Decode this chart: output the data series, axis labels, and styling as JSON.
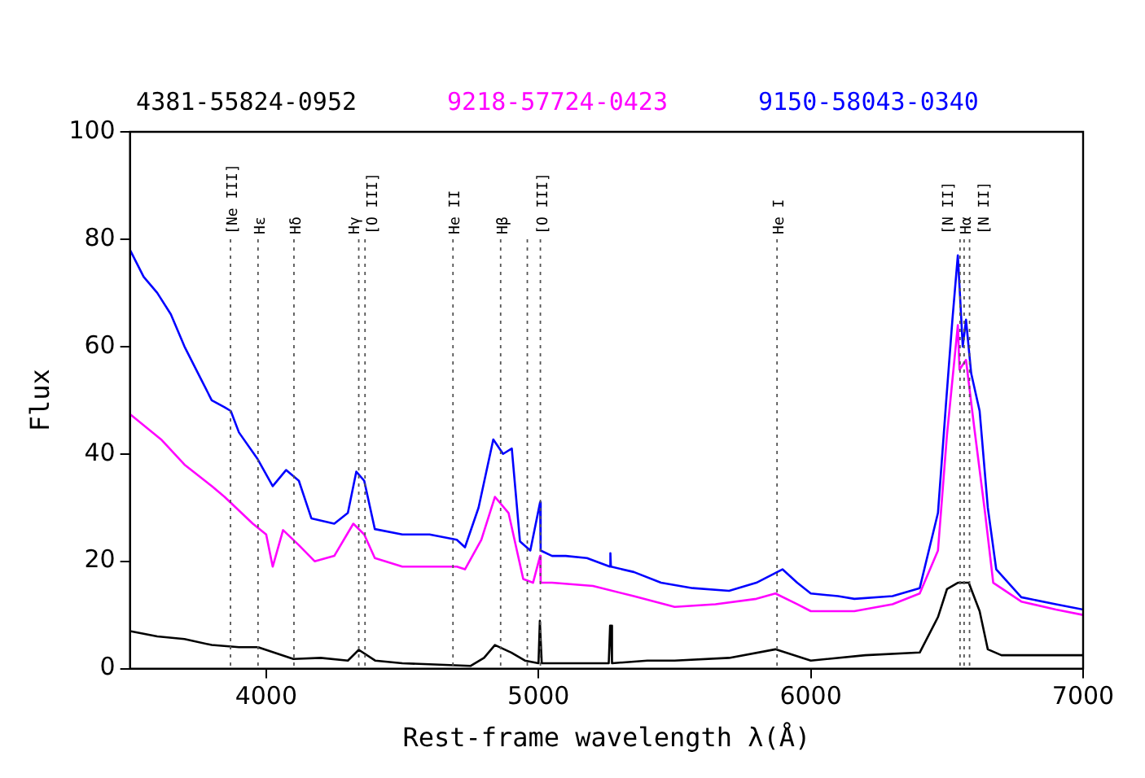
{
  "chart_data": {
    "type": "line",
    "xlabel": "Rest-frame wavelength λ(Å)",
    "ylabel": "Flux",
    "xlim": [
      3500,
      7000
    ],
    "xticks": [
      4000,
      5000,
      6000,
      7000
    ],
    "ylim": [
      0,
      100
    ],
    "yticks": [
      0,
      20,
      40,
      60,
      80,
      100
    ],
    "grid": false,
    "legend": "top",
    "marker": "none",
    "line_style": "solid",
    "series": [
      {
        "name": "4381-55824-0952",
        "color": "#000000",
        "x": [
          3500,
          3600,
          3700,
          3800,
          3900,
          3970,
          4100,
          4200,
          4300,
          4340,
          4400,
          4500,
          4600,
          4750,
          4800,
          4840,
          4900,
          4950,
          5000,
          5005,
          5008,
          5012,
          5100,
          5200,
          5258,
          5263,
          5266,
          5270,
          5400,
          5500,
          5700,
          5870,
          6000,
          6200,
          6400,
          6467,
          6500,
          6540,
          6580,
          6620,
          6650,
          6700,
          6850,
          7000
        ],
        "values": [
          7,
          6,
          5.5,
          4.4,
          4,
          4,
          1.8,
          2,
          1.5,
          3.5,
          1.5,
          1,
          0.8,
          0.5,
          2,
          4.4,
          3,
          1.5,
          1,
          8.9,
          8.9,
          1,
          1,
          1,
          1,
          8,
          8,
          1,
          1.5,
          1.5,
          2,
          3.6,
          1.5,
          2.5,
          3,
          9.6,
          14.8,
          16,
          16,
          10.7,
          3.6,
          2.5,
          2.5,
          2.5
        ]
      },
      {
        "name": "9218-57724-0423",
        "color": "#ff00ff",
        "x": [
          3500,
          3614,
          3700,
          3800,
          3847,
          3951,
          4000,
          4024,
          4062,
          4120,
          4178,
          4250,
          4320,
          4360,
          4399,
          4500,
          4600,
          4700,
          4730,
          4790,
          4840,
          4890,
          4944,
          4980,
          5006,
          5008,
          5050,
          5200,
          5350,
          5500,
          5650,
          5800,
          5870,
          5950,
          6000,
          6160,
          6300,
          6400,
          6467,
          6500,
          6540,
          6546,
          6570,
          6600,
          6640,
          6670,
          6773,
          6900,
          7000
        ],
        "values": [
          47.4,
          42.7,
          38,
          34,
          32,
          27,
          25,
          19,
          25.8,
          23,
          20,
          21,
          27,
          25,
          20.6,
          19,
          19,
          19,
          18.5,
          24,
          32,
          29,
          16.7,
          16,
          21,
          16,
          16,
          15.4,
          13.5,
          11.5,
          12,
          13,
          14,
          12,
          10.7,
          10.7,
          12,
          14,
          22,
          43.5,
          64,
          55.7,
          57.5,
          45,
          29,
          16,
          12.5,
          11,
          10
        ]
      },
      {
        "name": "9150-58043-0340",
        "color": "#0000ff",
        "x": [
          3500,
          3550,
          3600,
          3650,
          3700,
          3750,
          3800,
          3847,
          3870,
          3900,
          3969,
          4024,
          4073,
          4120,
          4166,
          4250,
          4300,
          4331,
          4360,
          4399,
          4500,
          4600,
          4700,
          4730,
          4780,
          4834,
          4870,
          4902,
          4932,
          4970,
          5006,
          5008,
          5050,
          5100,
          5178,
          5262,
          5264,
          5266,
          5350,
          5450,
          5566,
          5700,
          5800,
          5896,
          5950,
          6000,
          6100,
          6160,
          6300,
          6400,
          6467,
          6497,
          6520,
          6540,
          6558,
          6570,
          6589,
          6620,
          6650,
          6681,
          6773,
          6900,
          7000
        ],
        "values": [
          78,
          73,
          70,
          66,
          60,
          55,
          50,
          48.7,
          48,
          44,
          39,
          34,
          37,
          35,
          28,
          27,
          29,
          36.7,
          35,
          26,
          25,
          25,
          24,
          22.6,
          30,
          42.7,
          40,
          41,
          23.7,
          22,
          31,
          22,
          21,
          21,
          20.6,
          19,
          21.5,
          19,
          18,
          16,
          15,
          14.5,
          16,
          18.5,
          16,
          14,
          13.5,
          13,
          13.5,
          15,
          29,
          49.7,
          65,
          77,
          60,
          65,
          55,
          48,
          30,
          18.5,
          13.3,
          12,
          11
        ]
      }
    ],
    "ref_lines": [
      {
        "axis": "x",
        "value": 3869,
        "label": "[Ne III]",
        "line_style": "dotted"
      },
      {
        "axis": "x",
        "value": 3970,
        "label": "Hε",
        "line_style": "dotted"
      },
      {
        "axis": "x",
        "value": 4102,
        "label": "Hδ",
        "line_style": "dotted"
      },
      {
        "axis": "x",
        "value": 4340,
        "label": "Hγ",
        "line_style": "dotted"
      },
      {
        "axis": "x",
        "value": 4363,
        "label": "[O III]",
        "line_style": "dotted"
      },
      {
        "axis": "x",
        "value": 4686,
        "label": "He II",
        "line_style": "dotted"
      },
      {
        "axis": "x",
        "value": 4861,
        "label": "Hβ",
        "line_style": "dotted"
      },
      {
        "axis": "x",
        "value": 4959,
        "label": null,
        "line_style": "dotted"
      },
      {
        "axis": "x",
        "value": 5007,
        "label": "[O III]",
        "line_style": "dotted"
      },
      {
        "axis": "x",
        "value": 5876,
        "label": "He I",
        "line_style": "dotted"
      },
      {
        "axis": "x",
        "value": 6548,
        "label": "[N II]",
        "line_style": "dotted"
      },
      {
        "axis": "x",
        "value": 6563,
        "label": "Hα",
        "line_style": "dotted"
      },
      {
        "axis": "x",
        "value": 6583,
        "label": "[N II]",
        "line_style": "dotted"
      }
    ]
  }
}
